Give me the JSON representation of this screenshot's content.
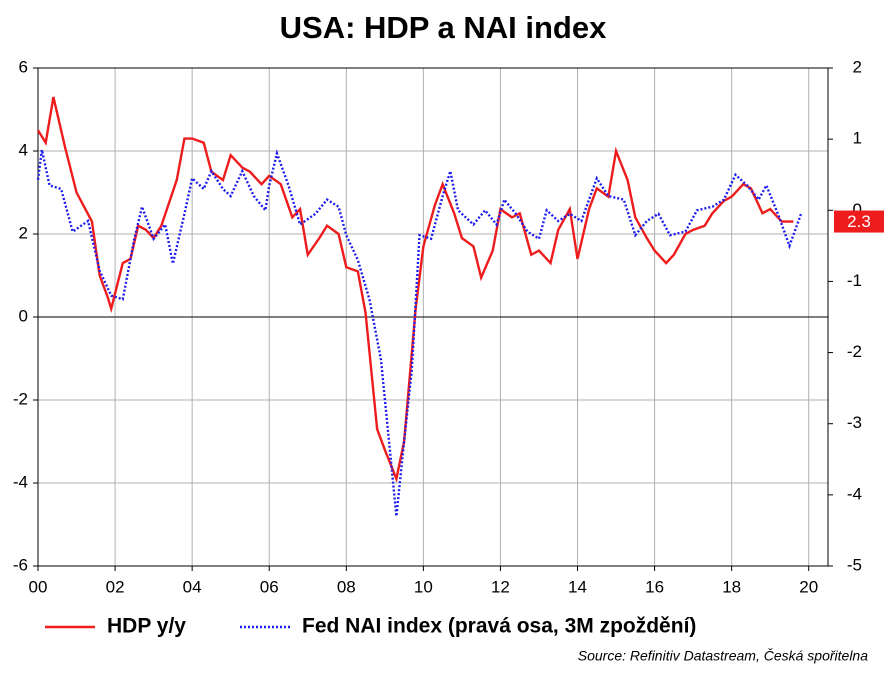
{
  "chart_data": {
    "type": "line",
    "title": "USA: HDP a NAI index",
    "xlim": [
      2000,
      2020.5
    ],
    "xticks": [
      {
        "value": 2000,
        "label": "00"
      },
      {
        "value": 2002,
        "label": "02"
      },
      {
        "value": 2004,
        "label": "04"
      },
      {
        "value": 2006,
        "label": "06"
      },
      {
        "value": 2008,
        "label": "08"
      },
      {
        "value": 2010,
        "label": "10"
      },
      {
        "value": 2012,
        "label": "12"
      },
      {
        "value": 2014,
        "label": "14"
      },
      {
        "value": 2016,
        "label": "16"
      },
      {
        "value": 2018,
        "label": "18"
      },
      {
        "value": 2020,
        "label": "20"
      }
    ],
    "ylim": [
      -6,
      6
    ],
    "yticks": [
      -6,
      -4,
      -2,
      0,
      2,
      4,
      6
    ],
    "y2lim": [
      -5,
      2
    ],
    "y2ticks": [
      -5,
      -4,
      -3,
      -2,
      -1,
      0,
      1,
      2
    ],
    "grid": true,
    "series": [
      {
        "name": "HDP y/y",
        "color": "#ee1c1c",
        "style": "solid",
        "x": [
          2000.0,
          2000.2,
          2000.4,
          2000.7,
          2001.0,
          2001.4,
          2001.6,
          2001.8,
          2001.9,
          2002.2,
          2002.4,
          2002.6,
          2002.8,
          2003.0,
          2003.2,
          2003.6,
          2003.8,
          2004.0,
          2004.3,
          2004.5,
          2004.8,
          2005.0,
          2005.3,
          2005.5,
          2005.8,
          2006.0,
          2006.3,
          2006.6,
          2006.8,
          2007.0,
          2007.3,
          2007.5,
          2007.8,
          2008.0,
          2008.3,
          2008.5,
          2008.8,
          2009.0,
          2009.3,
          2009.5,
          2009.8,
          2010.0,
          2010.3,
          2010.5,
          2010.8,
          2011.0,
          2011.3,
          2011.5,
          2011.8,
          2012.0,
          2012.3,
          2012.5,
          2012.8,
          2013.0,
          2013.3,
          2013.5,
          2013.8,
          2014.0,
          2014.3,
          2014.5,
          2014.8,
          2015.0,
          2015.3,
          2015.5,
          2015.8,
          2016.0,
          2016.3,
          2016.5,
          2016.8,
          2017.0,
          2017.3,
          2017.5,
          2017.8,
          2018.0,
          2018.3,
          2018.5,
          2018.8,
          2019.0,
          2019.3,
          2019.6
        ],
        "values": [
          4.5,
          4.2,
          5.3,
          4.1,
          3.0,
          2.3,
          1.0,
          0.5,
          0.2,
          1.3,
          1.4,
          2.2,
          2.1,
          1.9,
          2.2,
          3.3,
          4.3,
          4.3,
          4.2,
          3.5,
          3.3,
          3.9,
          3.6,
          3.5,
          3.2,
          3.4,
          3.2,
          2.4,
          2.6,
          1.5,
          1.9,
          2.2,
          2.0,
          1.2,
          1.1,
          0.1,
          -2.7,
          -3.2,
          -3.9,
          -3.0,
          0.2,
          1.7,
          2.7,
          3.2,
          2.5,
          1.9,
          1.7,
          0.95,
          1.6,
          2.6,
          2.4,
          2.5,
          1.5,
          1.6,
          1.3,
          2.1,
          2.6,
          1.4,
          2.6,
          3.1,
          2.9,
          4.0,
          3.3,
          2.4,
          1.9,
          1.6,
          1.3,
          1.5,
          2.0,
          2.1,
          2.2,
          2.5,
          2.8,
          2.9,
          3.2,
          3.1,
          2.5,
          2.6,
          2.3,
          2.3
        ]
      },
      {
        "name": "Fed NAI index (pravá osa, 3M zpoždění)",
        "color": "#1c1cee",
        "style": "dotted",
        "axis": "y2",
        "x": [
          2000.0,
          2000.1,
          2000.3,
          2000.6,
          2000.9,
          2001.3,
          2001.6,
          2001.9,
          2002.2,
          2002.5,
          2002.7,
          2003.0,
          2003.3,
          2003.5,
          2003.8,
          2004.0,
          2004.3,
          2004.5,
          2004.8,
          2005.0,
          2005.3,
          2005.6,
          2005.9,
          2006.0,
          2006.2,
          2006.5,
          2006.8,
          2007.2,
          2007.5,
          2007.8,
          2008.0,
          2008.3,
          2008.6,
          2008.9,
          2009.0,
          2009.3,
          2009.5,
          2009.7,
          2009.9,
          2010.2,
          2010.5,
          2010.7,
          2010.9,
          2011.3,
          2011.6,
          2011.9,
          2012.1,
          2012.4,
          2012.7,
          2013.0,
          2013.2,
          2013.5,
          2013.8,
          2014.1,
          2014.5,
          2014.8,
          2015.2,
          2015.5,
          2015.8,
          2016.1,
          2016.4,
          2016.8,
          2017.1,
          2017.5,
          2017.8,
          2018.1,
          2018.4,
          2018.7,
          2018.9,
          2019.2,
          2019.5,
          2019.8
        ],
        "values": [
          0.43,
          0.85,
          0.35,
          0.3,
          -0.3,
          -0.15,
          -0.85,
          -1.2,
          -1.25,
          -0.4,
          0.05,
          -0.4,
          -0.2,
          -0.75,
          -0.05,
          0.45,
          0.3,
          0.55,
          0.3,
          0.2,
          0.55,
          0.2,
          0.0,
          0.35,
          0.8,
          0.35,
          -0.2,
          -0.05,
          0.15,
          0.05,
          -0.35,
          -0.7,
          -1.25,
          -2.1,
          -2.65,
          -4.3,
          -3.25,
          -2.25,
          -0.35,
          -0.4,
          0.2,
          0.55,
          0.0,
          -0.2,
          0.0,
          -0.2,
          0.15,
          -0.05,
          -0.3,
          -0.4,
          0.0,
          -0.15,
          -0.05,
          -0.15,
          0.45,
          0.2,
          0.15,
          -0.35,
          -0.15,
          -0.05,
          -0.35,
          -0.3,
          0.0,
          0.05,
          0.15,
          0.5,
          0.35,
          0.15,
          0.35,
          -0.05,
          -0.5,
          -0.05
        ]
      }
    ],
    "source": "Source: Refinitiv Datastream, Česká spořitelna"
  }
}
